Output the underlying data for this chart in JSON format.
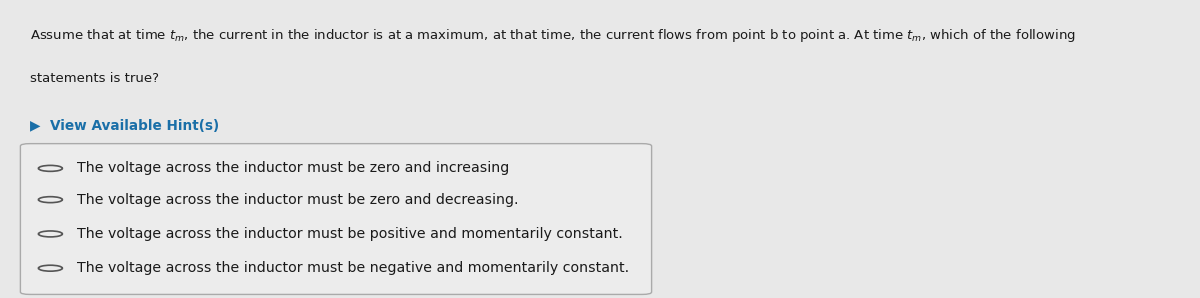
{
  "background_color": "#e8e8e8",
  "question_line1": "Assume that at time $t_m$, the current in the inductor is at a maximum, at that time, the current flows from point b to point a. At time $t_m$, which of the following",
  "question_line2": "statements is true?",
  "hint_text": "▶  View Available Hint(s)",
  "hint_color": "#1a6fa8",
  "options": [
    "The voltage across the inductor must be zero and increasing",
    "The voltage across the inductor must be zero and decreasing.",
    "The voltage across the inductor must be positive and momentarily constant.",
    "The voltage across the inductor must be negative and momentarily constant."
  ],
  "box_bg": "#e8e8e8",
  "box_edge": "#aaaaaa",
  "text_color": "#1a1a1a",
  "option_text_color": "#1a1a1a",
  "q_fontsize": 9.5,
  "hint_fontsize": 9.8,
  "opt_fontsize": 10.2
}
